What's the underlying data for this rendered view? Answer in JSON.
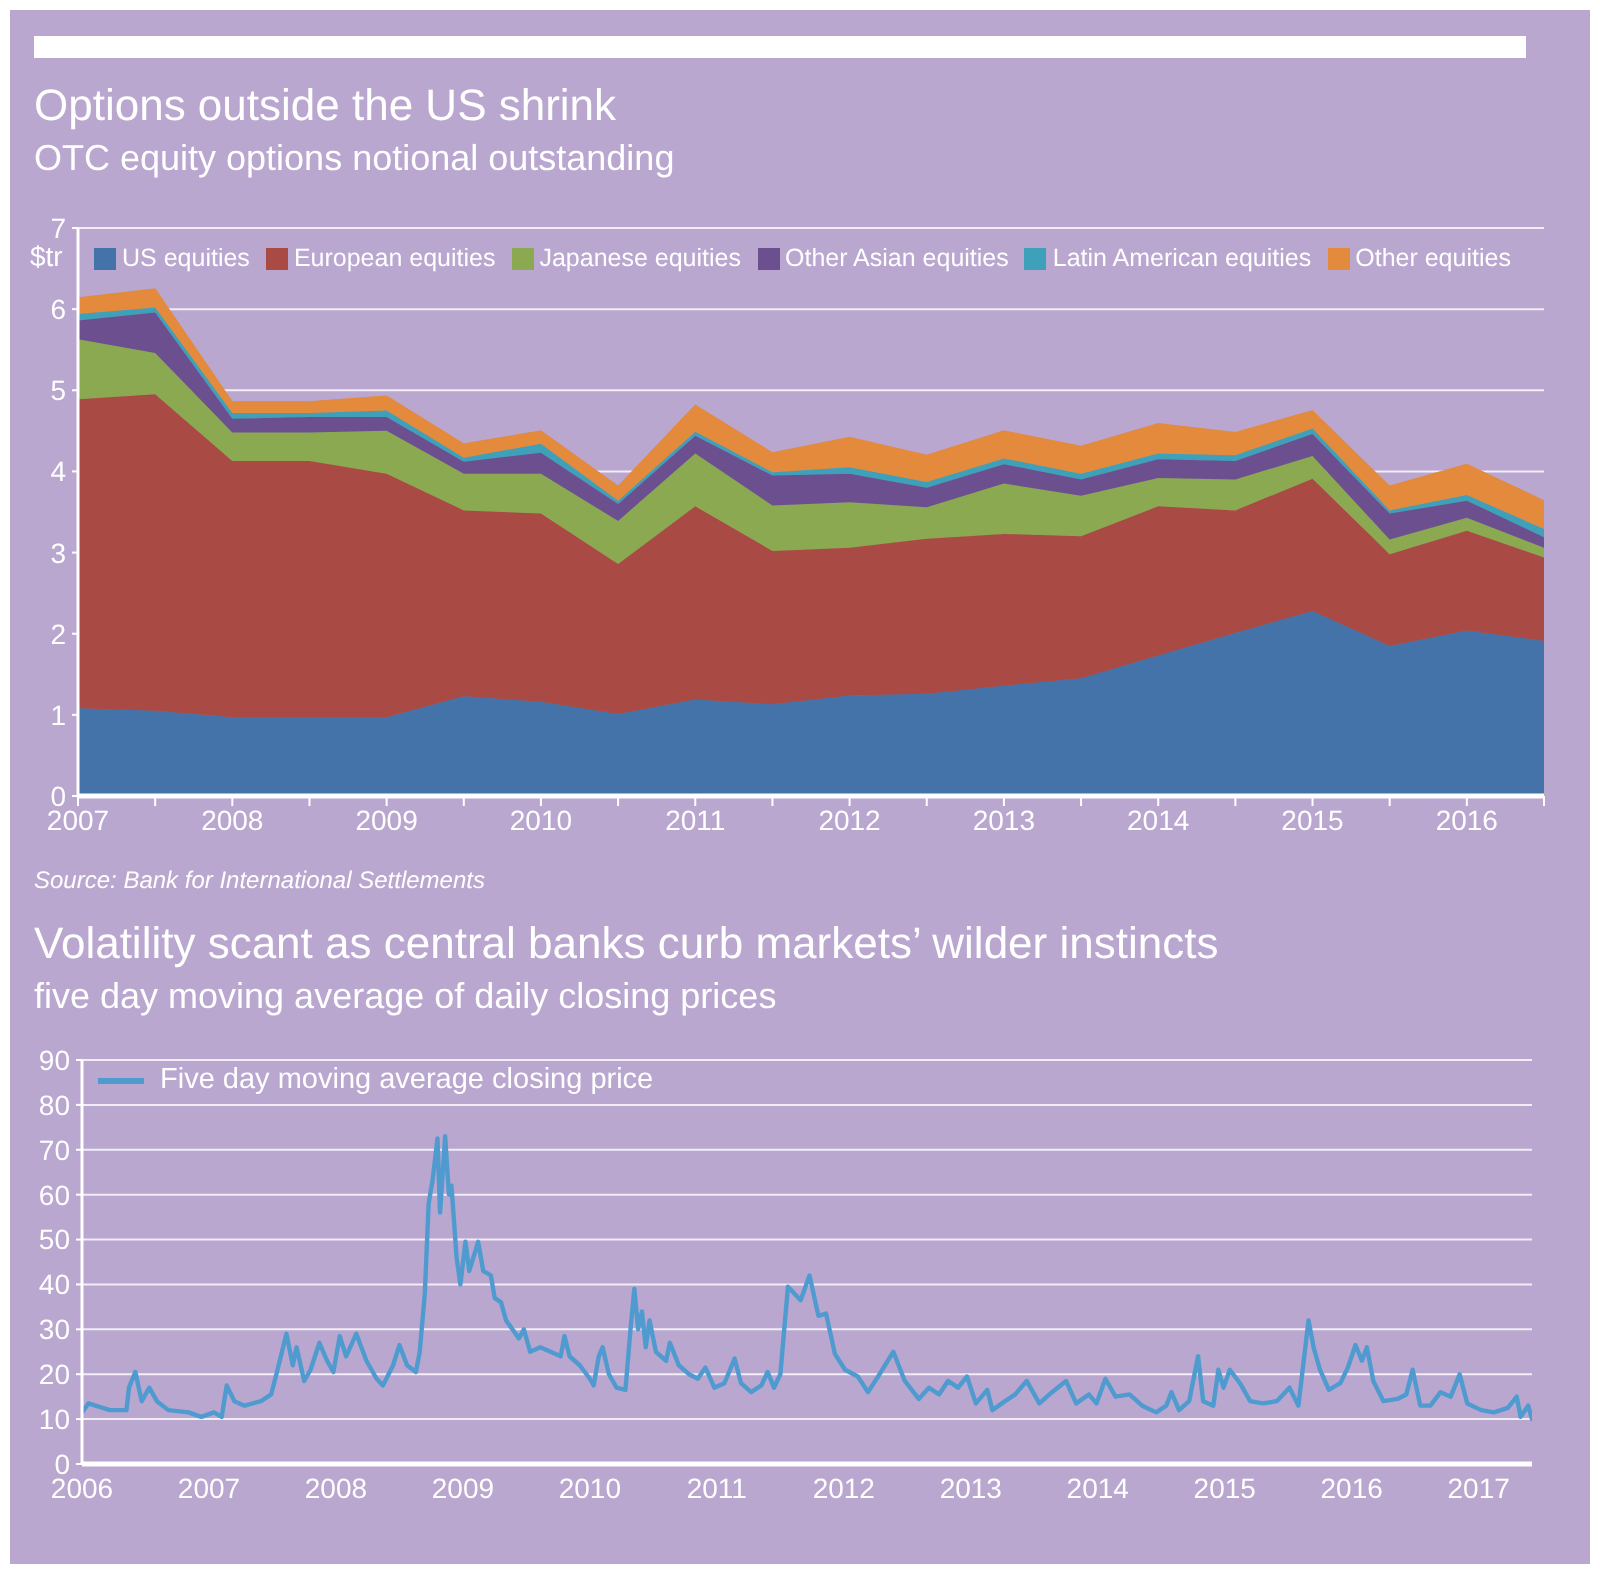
{
  "chart_data": [
    {
      "type": "area",
      "stacked": true,
      "title": "Options outside the US shrink",
      "subtitle": "OTC equity options notional outstanding",
      "ylabel": "$tr",
      "annotations": [
        "Source: Bank for International Settlements"
      ],
      "x": [
        2007,
        2007.5,
        2008,
        2008.5,
        2009,
        2009.5,
        2010,
        2010.5,
        2011,
        2011.5,
        2012,
        2012.5,
        2013,
        2013.5,
        2014,
        2014.5,
        2015,
        2015.5,
        2016,
        2016.5
      ],
      "series": [
        {
          "name": "US equities",
          "color": "#4473a9",
          "values": [
            1.08,
            1.05,
            0.97,
            0.97,
            0.97,
            1.23,
            1.16,
            1.01,
            1.19,
            1.13,
            1.24,
            1.26,
            1.36,
            1.45,
            1.73,
            2.01,
            2.28,
            1.85,
            2.04,
            1.91
          ]
        },
        {
          "name": "European equities",
          "color": "#a94a45",
          "values": [
            3.81,
            3.9,
            3.16,
            3.16,
            3.0,
            2.29,
            2.32,
            1.85,
            2.38,
            1.89,
            1.82,
            1.91,
            1.87,
            1.75,
            1.84,
            1.51,
            1.63,
            1.13,
            1.23,
            1.03
          ]
        },
        {
          "name": "Japanese equities",
          "color": "#8aa951",
          "values": [
            0.74,
            0.51,
            0.35,
            0.35,
            0.53,
            0.45,
            0.49,
            0.53,
            0.65,
            0.56,
            0.56,
            0.39,
            0.62,
            0.5,
            0.35,
            0.38,
            0.28,
            0.18,
            0.16,
            0.12
          ]
        },
        {
          "name": "Other Asian equities",
          "color": "#6c4f8f",
          "values": [
            0.23,
            0.5,
            0.17,
            0.19,
            0.17,
            0.15,
            0.26,
            0.21,
            0.22,
            0.37,
            0.35,
            0.24,
            0.24,
            0.2,
            0.23,
            0.23,
            0.27,
            0.32,
            0.21,
            0.13
          ]
        },
        {
          "name": "Latin American equities",
          "color": "#3fa0b9",
          "values": [
            0.08,
            0.06,
            0.07,
            0.05,
            0.08,
            0.05,
            0.11,
            0.04,
            0.05,
            0.04,
            0.08,
            0.07,
            0.07,
            0.07,
            0.07,
            0.07,
            0.07,
            0.04,
            0.07,
            0.1
          ]
        },
        {
          "name": "Other equities",
          "color": "#e38a3d",
          "values": [
            0.2,
            0.23,
            0.14,
            0.14,
            0.18,
            0.17,
            0.16,
            0.18,
            0.33,
            0.24,
            0.37,
            0.33,
            0.34,
            0.34,
            0.37,
            0.28,
            0.22,
            0.3,
            0.38,
            0.35
          ]
        }
      ],
      "xlim": [
        2007,
        2016.5
      ],
      "ylim": [
        0,
        7
      ],
      "xticks": [
        2007,
        {
          "value": 2007.5,
          "label": null
        },
        2008,
        {
          "value": 2008.5,
          "label": null
        },
        2009,
        {
          "value": 2009.5,
          "label": null
        },
        2010,
        {
          "value": 2010.5,
          "label": null
        },
        2011,
        {
          "value": 2011.5,
          "label": null
        },
        2012,
        {
          "value": 2012.5,
          "label": null
        },
        2013,
        {
          "value": 2013.5,
          "label": null
        },
        2014,
        {
          "value": 2014.5,
          "label": null
        },
        2015,
        {
          "value": 2015.5,
          "label": null
        },
        2016,
        {
          "value": 2016.5,
          "label": null
        }
      ],
      "yticks": [
        0,
        1,
        2,
        3,
        4,
        5,
        6,
        7
      ],
      "grid": "y",
      "legend": "top"
    },
    {
      "type": "line",
      "title": "Volatility scant as central banks curb markets’ wilder instincts",
      "subtitle": "five day moving average of daily closing prices",
      "x": [
        2006.0,
        2006.05,
        2006.22,
        2006.35,
        2006.37,
        2006.42,
        2006.47,
        2006.53,
        2006.59,
        2006.68,
        2006.84,
        2006.94,
        2007.04,
        2007.1,
        2007.14,
        2007.2,
        2007.28,
        2007.41,
        2007.49,
        2007.54,
        2007.61,
        2007.66,
        2007.69,
        2007.75,
        2007.8,
        2007.87,
        2007.93,
        2007.98,
        2008.03,
        2008.08,
        2008.16,
        2008.24,
        2008.32,
        2008.37,
        2008.45,
        2008.5,
        2008.56,
        2008.63,
        2008.66,
        2008.7,
        2008.73,
        2008.76,
        2008.8,
        2008.82,
        2008.86,
        2008.89,
        2008.91,
        2008.95,
        2008.98,
        2009.02,
        2009.05,
        2009.12,
        2009.16,
        2009.22,
        2009.25,
        2009.3,
        2009.34,
        2009.39,
        2009.44,
        2009.48,
        2009.53,
        2009.61,
        2009.69,
        2009.77,
        2009.8,
        2009.84,
        2009.92,
        2010.0,
        2010.03,
        2010.07,
        2010.1,
        2010.15,
        2010.21,
        2010.28,
        2010.32,
        2010.35,
        2010.38,
        2010.41,
        2010.44,
        2010.47,
        2010.52,
        2010.6,
        2010.63,
        2010.7,
        2010.78,
        2010.85,
        2010.91,
        2010.98,
        2011.06,
        2011.14,
        2011.19,
        2011.27,
        2011.35,
        2011.4,
        2011.45,
        2011.5,
        2011.56,
        2011.61,
        2011.66,
        2011.73,
        2011.8,
        2011.86,
        2011.93,
        2012.01,
        2012.11,
        2012.19,
        2012.27,
        2012.39,
        2012.48,
        2012.59,
        2012.67,
        2012.75,
        2012.82,
        2012.9,
        2012.97,
        2013.04,
        2013.13,
        2013.17,
        2013.27,
        2013.35,
        2013.44,
        2013.54,
        2013.64,
        2013.75,
        2013.83,
        2013.93,
        2013.99,
        2014.06,
        2014.14,
        2014.25,
        2014.35,
        2014.46,
        2014.54,
        2014.58,
        2014.64,
        2014.72,
        2014.79,
        2014.83,
        2014.91,
        2014.95,
        2014.99,
        2015.04,
        2015.12,
        2015.2,
        2015.3,
        2015.41,
        2015.51,
        2015.58,
        2015.66,
        2015.7,
        2015.75,
        2015.82,
        2015.91,
        2015.97,
        2016.03,
        2016.08,
        2016.12,
        2016.17,
        2016.25,
        2016.36,
        2016.43,
        2016.48,
        2016.54,
        2016.62,
        2016.7,
        2016.78,
        2016.85,
        2016.91,
        2017.02,
        2017.12,
        2017.23,
        2017.3,
        2017.33,
        2017.39,
        2017.42
      ],
      "series": [
        {
          "name": "Five day moving average closing price",
          "color": "#4f9bd0",
          "values": [
            11.5,
            13.5,
            12,
            12,
            17,
            20.5,
            14,
            17,
            14,
            12,
            11.5,
            10.5,
            11.5,
            10.5,
            17.5,
            14,
            13,
            14,
            15.5,
            21,
            29,
            22,
            26,
            18.5,
            21,
            27,
            23,
            20.5,
            28.5,
            24,
            29,
            23,
            19,
            17.5,
            22,
            26.5,
            22,
            20.5,
            25,
            38,
            58,
            63,
            72.5,
            56,
            73,
            60,
            62,
            46,
            40,
            49.5,
            43,
            49.5,
            43,
            42,
            37,
            36,
            32,
            30,
            28,
            30,
            25,
            26,
            25,
            24,
            28.5,
            24,
            22,
            19,
            17.5,
            24,
            26,
            20,
            17,
            16.5,
            30,
            39,
            30,
            34,
            26,
            32,
            25,
            23,
            27,
            22,
            20,
            19,
            21.5,
            17,
            18,
            23.5,
            18,
            16,
            17.5,
            20.5,
            17,
            20,
            39.5,
            38,
            36.5,
            42,
            33,
            33.5,
            24.5,
            21,
            19.5,
            16,
            19.5,
            25,
            18.5,
            14.5,
            17,
            15.5,
            18.5,
            17,
            19.5,
            13.5,
            16.5,
            12,
            14,
            15.5,
            18.5,
            13.5,
            16,
            18.5,
            13.5,
            15.5,
            13.5,
            19,
            15,
            15.5,
            13,
            11.5,
            13,
            16,
            12,
            14,
            24,
            14,
            13,
            21,
            17,
            21,
            18,
            14,
            13.5,
            14,
            17,
            13,
            32,
            26,
            21,
            16.5,
            18,
            21.5,
            26.5,
            23,
            26,
            18.5,
            14,
            14.5,
            15.5,
            21,
            13,
            13,
            16,
            15,
            20,
            13.5,
            12,
            11.5,
            12.5,
            15,
            10.5,
            13,
            10
          ]
        }
      ],
      "xlim": [
        2006,
        2017.42
      ],
      "ylim": [
        0,
        90
      ],
      "xticks": [
        2006,
        2007,
        2008,
        2009,
        2010,
        2011,
        2012,
        2013,
        2014,
        2015,
        2016,
        2017
      ],
      "yticks": [
        0,
        10,
        20,
        30,
        40,
        50,
        60,
        70,
        80,
        90
      ],
      "grid": "y",
      "legend": "top left"
    }
  ]
}
